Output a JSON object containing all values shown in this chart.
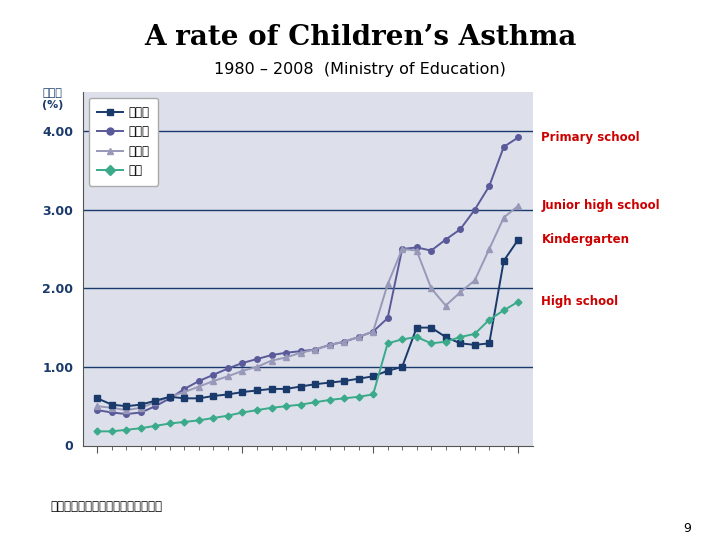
{
  "title": "A rate of Children’s Asthma",
  "subtitle": "1980 – 2008  (Ministry of Education)",
  "source_note": "出典：文部科学省「学校保健統計」",
  "page_number": "9",
  "background_color": "#ffffff",
  "plot_bg_color": "#dde0ea",
  "grid_color": "#1a3a6b",
  "ann_color": "#cc0000",
  "ytick_color": "#1a3a6b",
  "ylabel_text": "被患率\n(%)",
  "series": {
    "kindergarten": {
      "label": "幼稚園",
      "color": "#1a3a6b",
      "marker": "s",
      "markersize": 4,
      "linewidth": 1.4,
      "data_x": [
        -10,
        -9,
        -8,
        -7,
        -6,
        -5,
        -4,
        -3,
        -2,
        -1,
        0,
        1,
        2,
        3,
        4,
        5,
        6,
        7,
        8,
        9,
        10,
        11,
        12,
        13,
        14,
        15,
        16,
        17,
        18,
        19
      ],
      "data_y": [
        0.6,
        0.52,
        0.5,
        0.52,
        0.57,
        0.62,
        0.6,
        0.6,
        0.63,
        0.65,
        0.68,
        0.7,
        0.72,
        0.72,
        0.75,
        0.78,
        0.8,
        0.82,
        0.85,
        0.88,
        0.95,
        1.0,
        1.5,
        1.5,
        1.38,
        1.3,
        1.28,
        1.3,
        2.35,
        2.62
      ]
    },
    "primary": {
      "label": "小学校",
      "color": "#5a5a9a",
      "marker": "o",
      "markersize": 4,
      "linewidth": 1.4,
      "data_x": [
        -10,
        -9,
        -8,
        -7,
        -6,
        -5,
        -4,
        -3,
        -2,
        -1,
        0,
        1,
        2,
        3,
        4,
        5,
        6,
        7,
        8,
        9,
        10,
        11,
        12,
        13,
        14,
        15,
        16,
        17,
        18,
        19
      ],
      "data_y": [
        0.45,
        0.42,
        0.4,
        0.42,
        0.5,
        0.6,
        0.72,
        0.82,
        0.9,
        0.98,
        1.05,
        1.1,
        1.15,
        1.18,
        1.2,
        1.22,
        1.28,
        1.32,
        1.38,
        1.45,
        1.62,
        2.5,
        2.52,
        2.48,
        2.62,
        2.75,
        3.0,
        3.3,
        3.8,
        3.92
      ]
    },
    "junior": {
      "label": "中学校",
      "color": "#9898b8",
      "marker": "^",
      "markersize": 4,
      "linewidth": 1.4,
      "data_x": [
        -10,
        -9,
        -8,
        -7,
        -6,
        -5,
        -4,
        -3,
        -2,
        -1,
        0,
        1,
        2,
        3,
        4,
        5,
        6,
        7,
        8,
        9,
        10,
        11,
        12,
        13,
        14,
        15,
        16,
        17,
        18,
        19
      ],
      "data_y": [
        0.5,
        0.48,
        0.45,
        0.48,
        0.55,
        0.62,
        0.68,
        0.75,
        0.82,
        0.88,
        0.95,
        1.0,
        1.08,
        1.12,
        1.18,
        1.22,
        1.28,
        1.32,
        1.38,
        1.45,
        2.05,
        2.5,
        2.48,
        2.0,
        1.78,
        1.95,
        2.1,
        2.5,
        2.9,
        3.05
      ]
    },
    "highschool": {
      "label": "高校",
      "color": "#3aaa8a",
      "marker": "D",
      "markersize": 3.5,
      "linewidth": 1.4,
      "data_x": [
        -10,
        -9,
        -8,
        -7,
        -6,
        -5,
        -4,
        -3,
        -2,
        -1,
        0,
        1,
        2,
        3,
        4,
        5,
        6,
        7,
        8,
        9,
        10,
        11,
        12,
        13,
        14,
        15,
        16,
        17,
        18,
        19
      ],
      "data_y": [
        0.18,
        0.18,
        0.2,
        0.22,
        0.25,
        0.28,
        0.3,
        0.32,
        0.35,
        0.38,
        0.42,
        0.45,
        0.48,
        0.5,
        0.52,
        0.55,
        0.58,
        0.6,
        0.62,
        0.65,
        1.3,
        1.35,
        1.38,
        1.3,
        1.32,
        1.38,
        1.42,
        1.6,
        1.72,
        1.83
      ]
    }
  },
  "ylim": [
    0,
    4.5
  ],
  "yticks": [
    0,
    1.0,
    2.0,
    3.0,
    4.0
  ],
  "ytick_labels": [
    "0",
    "1.00",
    "2.00",
    "3.00",
    "4.00"
  ],
  "xlim": [
    -11,
    20
  ],
  "legend_order": [
    "kindergarten",
    "primary",
    "junior",
    "highschool"
  ],
  "annotations": [
    {
      "label": "Primary school",
      "y": 3.92
    },
    {
      "label": "Junior high school",
      "y": 3.05
    },
    {
      "label": "Kindergarten",
      "y": 2.62
    },
    {
      "label": "High school",
      "y": 1.83
    }
  ]
}
